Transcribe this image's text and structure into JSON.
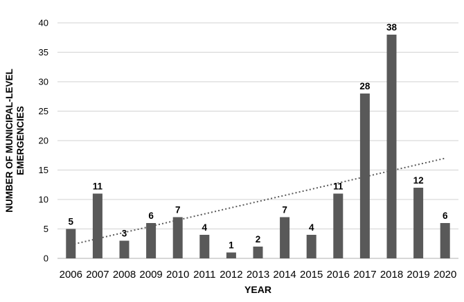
{
  "chart_data": {
    "type": "bar",
    "title": "",
    "categories": [
      "2006",
      "2007",
      "2008",
      "2009",
      "2010",
      "2011",
      "2012",
      "2013",
      "2014",
      "2015",
      "2016",
      "2017",
      "2018",
      "2019",
      "2020"
    ],
    "values": [
      5,
      11,
      3,
      6,
      7,
      4,
      1,
      2,
      7,
      4,
      11,
      28,
      38,
      12,
      6
    ],
    "xlabel": "YEAR",
    "ylabel_lines": [
      "NUMBER OF MUNICIPAL-LEVEL",
      "EMERGENCIES"
    ],
    "ylim": [
      0,
      40
    ],
    "yticks": [
      0,
      5,
      10,
      15,
      20,
      25,
      30,
      35,
      40
    ],
    "grid": "horizontal",
    "legend": "none",
    "data_labels": true,
    "trendline": {
      "type": "linear",
      "style": "dotted",
      "start_value": 2.3,
      "end_value": 17.0
    }
  },
  "colors": {
    "bar": "#595959",
    "gridline": "#d9d9d9",
    "axis_line": "#bfbfbf",
    "trendline": "#595959",
    "text": "#000000",
    "background": "#ffffff"
  }
}
